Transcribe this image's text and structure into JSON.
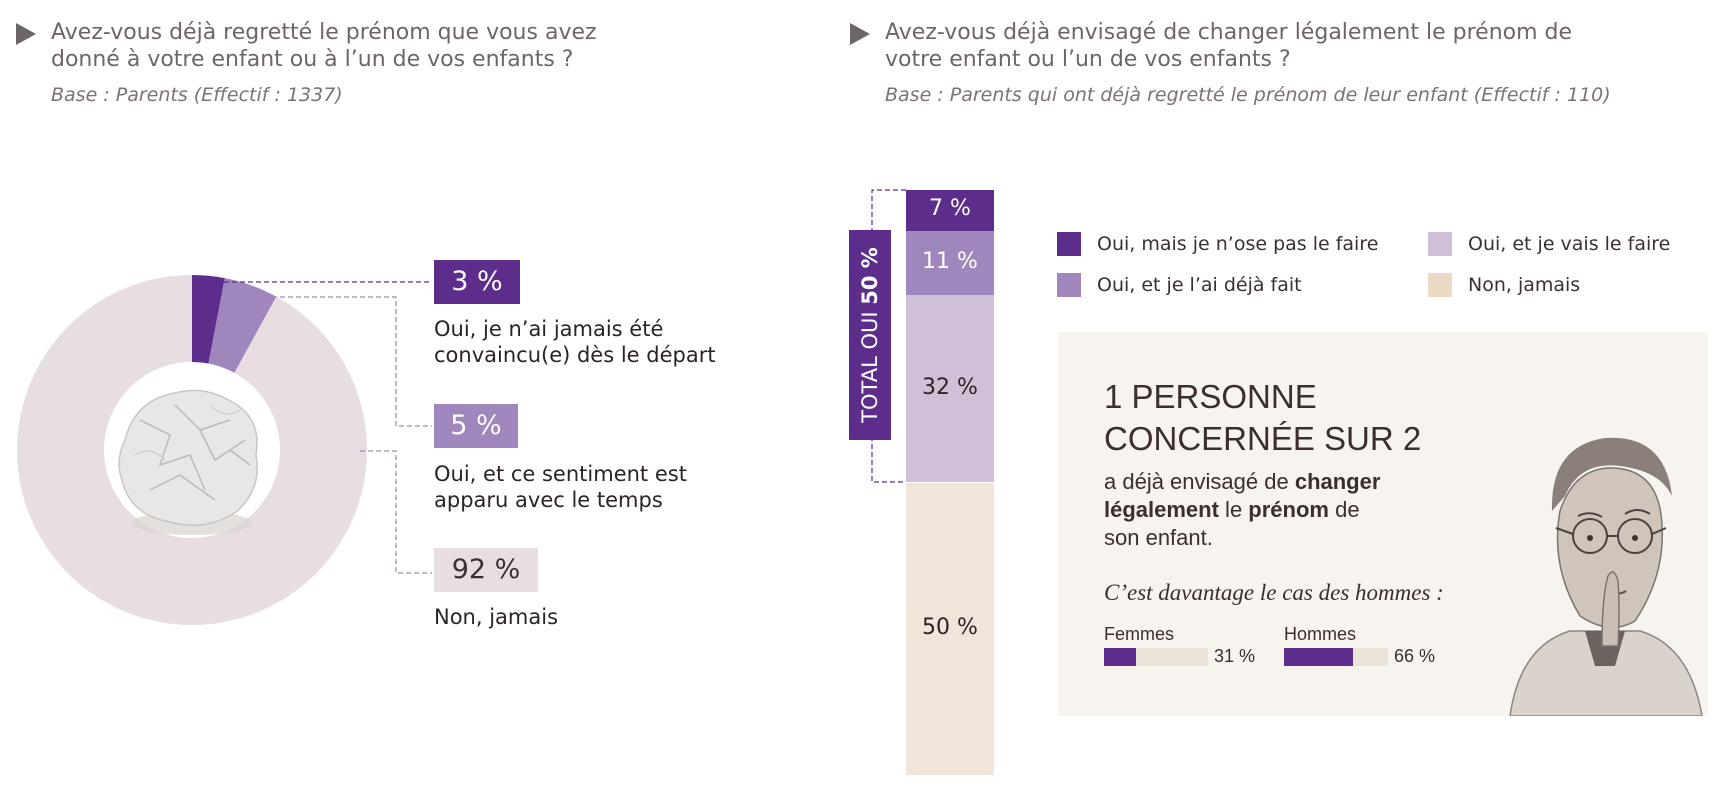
{
  "colors": {
    "dark_purple": "#5d2d8c",
    "mid_purple": "#9f86bd",
    "light_lilac": "#cfc0d8",
    "beige": "#f0e5d8",
    "pale_mauve": "#e8dde1",
    "text_grey": "#6e6568"
  },
  "left": {
    "question": "Avez-vous déjà regretté le prénom que vous avez donné à votre enfant ou à l’un de vos enfants ?",
    "question_line1": "Avez-vous déjà regretté le prénom que vous avez",
    "question_line2": "donné à votre enfant ou à l’un de vos enfants ?",
    "base": "Base : Parents (Effectif : 1337)",
    "image_icon": "crumpled-paper-ball-icon"
  },
  "right": {
    "question_line1": "Avez-vous déjà envisagé de changer légalement le prénom de",
    "question_line2": "votre enfant ou l’un de vos enfants ?",
    "base": "Base : Parents qui ont déjà regretté le prénom de leur enfant (Effectif : 110)",
    "total_label": "TOTAL OUI ",
    "total_value": "50 %",
    "panel": {
      "headline_line1": "1 PERSONNE",
      "headline_line2": "CONCERNÉE SUR 2",
      "text_a": "a déjà envisagé de ",
      "text_b": "changer",
      "text_c": "légalement",
      "text_d": " le ",
      "text_e": "prénom",
      "text_f": " de",
      "text_g": "son enfant.",
      "note": "C’est davantage le cas des hommes :",
      "image_icon": "thinking-man-portrait-icon"
    }
  },
  "chart_data": [
    {
      "type": "pie",
      "title": "Avez-vous déjà regretté le prénom que vous avez donné à votre enfant ou à l’un de vos enfants ?",
      "categories": [
        "Oui, je n’ai jamais été convaincu(e) dès le départ",
        "Oui, et ce sentiment est apparu avec le temps",
        "Non, jamais"
      ],
      "values": [
        3,
        5,
        92
      ],
      "labels": [
        "3 %",
        "5 %",
        "92 %"
      ],
      "label_lines": [
        [
          "Oui, je n’ai jamais été",
          "convaincu(e) dès le départ"
        ],
        [
          "Oui, et ce sentiment est",
          "apparu avec le temps"
        ],
        [
          "Non, jamais"
        ]
      ],
      "colors": [
        "#5d2d8c",
        "#9f86bd",
        "#e8dde1"
      ],
      "donut": true
    },
    {
      "type": "bar",
      "stacked": true,
      "title": "Avez-vous déjà envisagé de changer légalement le prénom de votre enfant ou l’un de vos enfants ?",
      "series": [
        {
          "name": "Oui, mais je n’ose pas le faire",
          "value": 7,
          "label": "7 %",
          "color": "#5d2d8c"
        },
        {
          "name": "Oui, et je l’ai déjà fait",
          "value": 11,
          "label": "11 %",
          "color": "#9f86bd"
        },
        {
          "name": "Oui, et je vais le faire",
          "value": 32,
          "label": "32 %",
          "color": "#cfc0d8"
        },
        {
          "name": "Non, jamais",
          "value": 50,
          "label": "50 %",
          "color": "#f0e5d8"
        }
      ],
      "legend_placement": "right"
    },
    {
      "type": "bar",
      "orientation": "horizontal",
      "title": "C’est davantage le cas des hommes :",
      "categories": [
        "Femmes",
        "Hommes"
      ],
      "values": [
        31,
        66
      ],
      "labels": [
        "31 %",
        "66 %"
      ],
      "ylim": [
        0,
        100
      ]
    }
  ]
}
